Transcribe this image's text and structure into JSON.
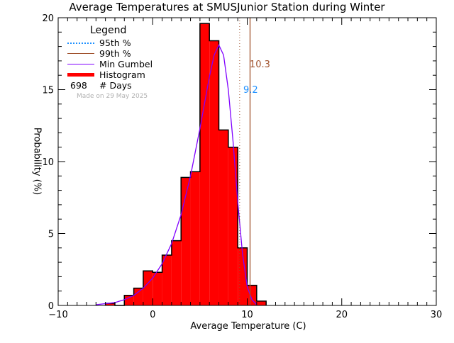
{
  "chart_data": {
    "type": "bar",
    "title": "Average Temperatures at SMUSJunior Station during Winter",
    "xlabel": "Average Temperature (C)",
    "ylabel": "Probability (%)",
    "xlim": [
      -10,
      30
    ],
    "ylim": [
      0,
      20
    ],
    "x_ticks": [
      -10,
      0,
      10,
      20,
      30
    ],
    "y_ticks": [
      0,
      5,
      10,
      15,
      20
    ],
    "bin_width": 1,
    "bins": [
      {
        "x0": -5,
        "x1": -4,
        "value": 0.15
      },
      {
        "x0": -4,
        "x1": -3,
        "value": 0.0
      },
      {
        "x0": -3,
        "x1": -2,
        "value": 0.7
      },
      {
        "x0": -2,
        "x1": -1,
        "value": 1.2
      },
      {
        "x0": -1,
        "x1": 0,
        "value": 2.4
      },
      {
        "x0": 0,
        "x1": 1,
        "value": 2.3
      },
      {
        "x0": 1,
        "x1": 2,
        "value": 3.5
      },
      {
        "x0": 2,
        "x1": 3,
        "value": 4.5
      },
      {
        "x0": 3,
        "x1": 4,
        "value": 8.9
      },
      {
        "x0": 4,
        "x1": 5,
        "value": 9.3
      },
      {
        "x0": 5,
        "x1": 6,
        "value": 19.6
      },
      {
        "x0": 6,
        "x1": 7,
        "value": 18.4
      },
      {
        "x0": 7,
        "x1": 8,
        "value": 12.2
      },
      {
        "x0": 8,
        "x1": 9,
        "value": 11.0
      },
      {
        "x0": 9,
        "x1": 10,
        "value": 4.0
      },
      {
        "x0": 10,
        "x1": 11,
        "value": 1.4
      },
      {
        "x0": 11,
        "x1": 12,
        "value": 0.3
      }
    ],
    "series": [
      {
        "name": "Histogram",
        "type": "bar",
        "color": "#ff0000"
      },
      {
        "name": "Min Gumbel",
        "type": "line",
        "color": "#8000ff",
        "x": [
          -6,
          -4,
          -3,
          -2,
          -1,
          0,
          1,
          2,
          3,
          4,
          5,
          6,
          6.5,
          7,
          7.5,
          8,
          8.5,
          9,
          9.5,
          10,
          10.5,
          11
        ],
        "values": [
          0.05,
          0.2,
          0.4,
          0.7,
          1.2,
          1.9,
          2.9,
          4.3,
          6.3,
          9.0,
          12.3,
          15.9,
          17.4,
          18.1,
          17.4,
          15.0,
          11.4,
          7.2,
          3.6,
          1.3,
          0.4,
          0.05
        ]
      },
      {
        "name": "95th %",
        "type": "vline",
        "x": 9.2,
        "color": "#1e90ff",
        "style": "dotted"
      },
      {
        "name": "99th %",
        "type": "vline",
        "x": 10.3,
        "color": "#a0522d",
        "style": "solid"
      }
    ],
    "annotations": [
      {
        "text": "10.3",
        "x": 10.3,
        "y": 16.5,
        "color": "#a0522d"
      },
      {
        "text": "9.2",
        "x": 9.2,
        "y": 14.8,
        "color": "#1e90ff"
      }
    ],
    "legend": {
      "title": "Legend",
      "position": "upper-left",
      "entries": [
        "95th %",
        "99th %",
        "Min Gumbel",
        "Histogram",
        "# Days"
      ]
    },
    "n_days": 698,
    "footnote": "Made on 29 May 2025",
    "grid": false
  },
  "labels": {
    "title": "Average Temperatures at SMUSJunior Station during Winter",
    "xlabel": "Average Temperature (C)",
    "ylabel": "Probability (%)",
    "legend_title": "Legend",
    "legend_95": "95th %",
    "legend_99": "99th %",
    "legend_gumbel": "Min Gumbel",
    "legend_hist": "Histogram",
    "legend_days_count": "698",
    "legend_days": "# Days",
    "made_on": "Made on 29 May 2025",
    "ann_99": "10.3",
    "ann_95": "9.2"
  },
  "colors": {
    "histogram": "#ff0000",
    "gumbel": "#8000ff",
    "p95": "#1e90ff",
    "p99": "#a0522d"
  }
}
